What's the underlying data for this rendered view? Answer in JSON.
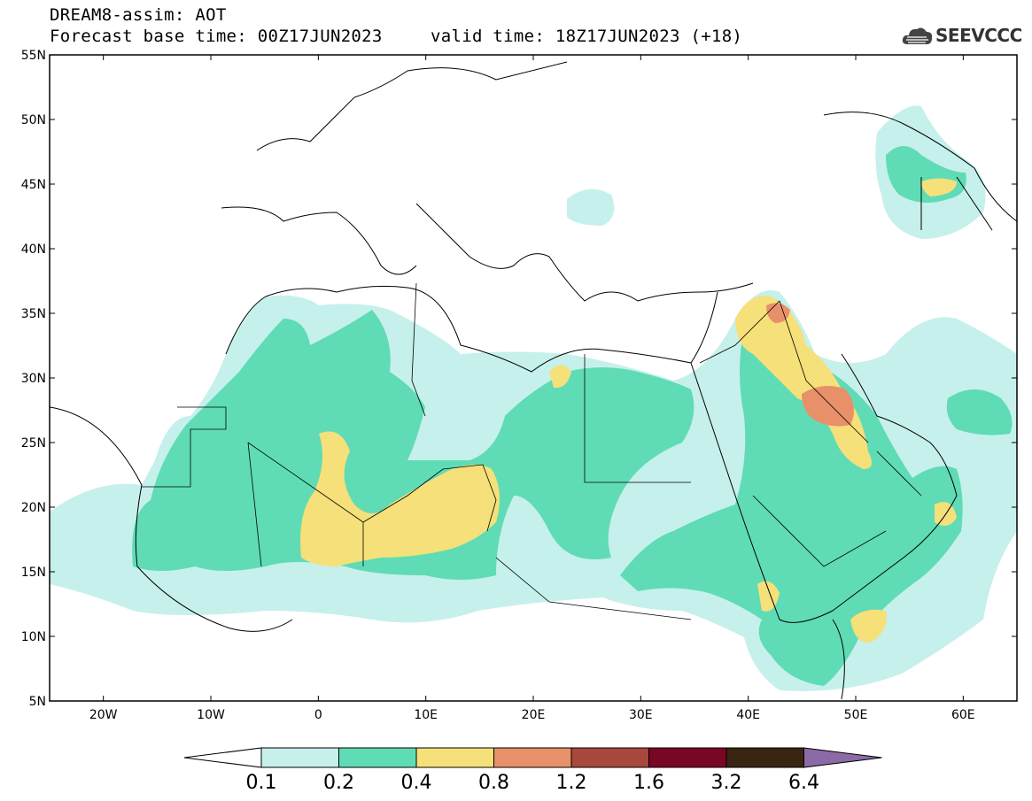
{
  "title": {
    "line1": "DREAM8-assim: AOT",
    "line2": "Forecast base time: 00Z17JUN2023",
    "valid": "valid time: 18Z17JUN2023 (+18)"
  },
  "logo": {
    "text": "SEEVCCC",
    "icon": "cloud-logo-icon"
  },
  "axes": {
    "lat_ticks": [
      "55N",
      "50N",
      "45N",
      "40N",
      "35N",
      "30N",
      "25N",
      "20N",
      "15N",
      "10N",
      "5N"
    ],
    "lon_ticks": [
      "20W",
      "10W",
      "0",
      "10E",
      "20E",
      "30E",
      "40E",
      "50E",
      "60E"
    ],
    "lat_range": [
      5,
      55
    ],
    "lon_range": [
      -25,
      65
    ]
  },
  "colorbar": {
    "labels": [
      "0.1",
      "0.2",
      "0.4",
      "0.8",
      "1.2",
      "1.6",
      "3.2",
      "6.4"
    ],
    "colors": [
      "#ffffff",
      "#c6f0ec",
      "#5fdcb5",
      "#f5e07a",
      "#e8906a",
      "#a8473c",
      "#7a0626",
      "#3a2412",
      "#8b6aa6"
    ]
  }
}
